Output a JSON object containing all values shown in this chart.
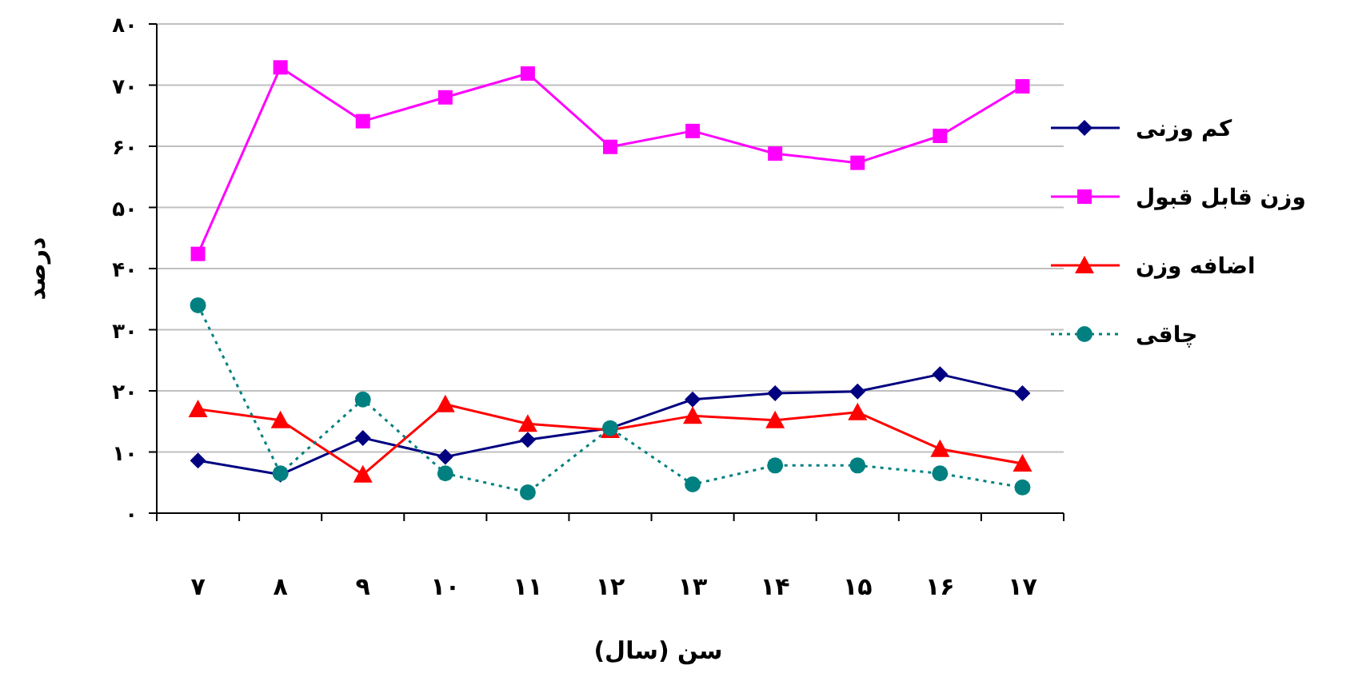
{
  "chart_data": {
    "type": "line",
    "xlabel": "سن (سال)",
    "ylabel": "درصد",
    "categories": [
      "۷",
      "۸",
      "۹",
      "۱۰",
      "۱۱",
      "۱۲",
      "۱۳",
      "۱۴",
      "۱۵",
      "۱۶",
      "۱۷"
    ],
    "ylim": [
      0,
      80
    ],
    "yticks": [
      {
        "value": 0,
        "label": "۰"
      },
      {
        "value": 10,
        "label": "۱۰"
      },
      {
        "value": 20,
        "label": "۲۰"
      },
      {
        "value": 30,
        "label": "۳۰"
      },
      {
        "value": 40,
        "label": "۴۰"
      },
      {
        "value": 50,
        "label": "۵۰"
      },
      {
        "value": 60,
        "label": "۶۰"
      },
      {
        "value": 70,
        "label": "۷۰"
      },
      {
        "value": 80,
        "label": "۸۰"
      }
    ],
    "grid": "y",
    "legend": "right",
    "series": [
      {
        "name": "کم وزنی",
        "color": "#000080",
        "marker": "diamond",
        "line_style": "solid",
        "values": [
          8.6,
          6.3,
          12.3,
          9.2,
          12.0,
          13.9,
          18.6,
          19.6,
          19.9,
          22.7,
          19.6
        ]
      },
      {
        "name": "وزن قابل قبول",
        "color": "#ff00ff",
        "marker": "square",
        "line_style": "solid",
        "values": [
          42.4,
          72.9,
          64.1,
          68.0,
          71.9,
          59.9,
          62.5,
          58.8,
          57.3,
          61.7,
          69.8
        ]
      },
      {
        "name": "اضافه وزن",
        "color": "#ff0000",
        "marker": "triangle",
        "line_style": "solid",
        "values": [
          17.0,
          15.2,
          6.3,
          17.8,
          14.6,
          13.6,
          15.9,
          15.2,
          16.5,
          10.5,
          8.1
        ]
      },
      {
        "name": "چاقی",
        "color": "#008080",
        "marker": "circle",
        "line_style": "dotted",
        "values": [
          34.0,
          6.5,
          18.6,
          6.5,
          3.4,
          13.9,
          4.7,
          7.8,
          7.8,
          6.5,
          4.2
        ]
      }
    ]
  }
}
